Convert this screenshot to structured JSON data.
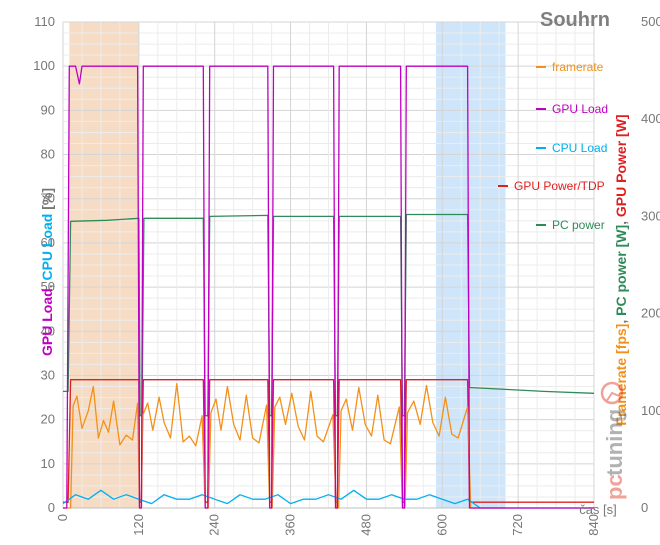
{
  "chart_data": {
    "type": "line",
    "title": "Souhrn",
    "xlabel": "čas [s]",
    "ylabel_left": "GPU Load, CPU Load [%]",
    "ylabel_left_parts": [
      {
        "text": "GPU Load",
        "color": "#c000c0"
      },
      {
        "text": ", ",
        "color": "#777777"
      },
      {
        "text": "CPU Load",
        "color": "#00b0f0"
      },
      {
        "text": " [%]",
        "color": "#777777"
      }
    ],
    "ylabel_right": "Framerate [fps], PC power [W], GPU Power [W]",
    "ylabel_right_parts": [
      {
        "text": "Framerate [fps]",
        "color": "#f39019"
      },
      {
        "text": ", ",
        "color": "#777777"
      },
      {
        "text": "PC power [W]",
        "color": "#2e8b57"
      },
      {
        "text": ", ",
        "color": "#777777"
      },
      {
        "text": "GPU Power [W]",
        "color": "#e02020"
      }
    ],
    "xlim": [
      0,
      840
    ],
    "ylim_left": [
      0,
      110
    ],
    "ylim_right": [
      0,
      500
    ],
    "x_ticks": [
      0,
      120,
      240,
      360,
      480,
      600,
      720,
      840
    ],
    "y_left_ticks": [
      0,
      10,
      20,
      30,
      40,
      50,
      60,
      70,
      80,
      90,
      100,
      110
    ],
    "y_right_ticks": [
      0,
      100,
      200,
      300,
      400,
      500
    ],
    "grid": true,
    "legend_position": "right",
    "highlight_regions": [
      {
        "x_start": 10,
        "x_end": 120,
        "color": "#f6dcc5"
      },
      {
        "x_start": 590,
        "x_end": 700,
        "color": "#cfe6fa"
      }
    ],
    "series": [
      {
        "name": "framerate",
        "color": "#f39019",
        "axis": "right",
        "points": [
          [
            0,
            0
          ],
          [
            5,
            0
          ],
          [
            12,
            0
          ],
          [
            16,
            105
          ],
          [
            22,
            115
          ],
          [
            30,
            82
          ],
          [
            40,
            100
          ],
          [
            48,
            125
          ],
          [
            56,
            72
          ],
          [
            64,
            90
          ],
          [
            72,
            78
          ],
          [
            80,
            110
          ],
          [
            90,
            65
          ],
          [
            100,
            75
          ],
          [
            110,
            70
          ],
          [
            118,
            108
          ],
          [
            121,
            0
          ],
          [
            124,
            0
          ],
          [
            126,
            95
          ],
          [
            134,
            108
          ],
          [
            142,
            80
          ],
          [
            152,
            114
          ],
          [
            160,
            88
          ],
          [
            170,
            72
          ],
          [
            180,
            128
          ],
          [
            190,
            68
          ],
          [
            200,
            74
          ],
          [
            210,
            64
          ],
          [
            220,
            95
          ],
          [
            225,
            0
          ],
          [
            230,
            0
          ],
          [
            234,
            98
          ],
          [
            242,
            112
          ],
          [
            250,
            80
          ],
          [
            260,
            125
          ],
          [
            270,
            86
          ],
          [
            280,
            70
          ],
          [
            290,
            116
          ],
          [
            300,
            72
          ],
          [
            310,
            67
          ],
          [
            322,
            106
          ],
          [
            327,
            0
          ],
          [
            331,
            0
          ],
          [
            335,
            104
          ],
          [
            343,
            114
          ],
          [
            352,
            86
          ],
          [
            362,
            118
          ],
          [
            372,
            84
          ],
          [
            382,
            70
          ],
          [
            392,
            120
          ],
          [
            402,
            74
          ],
          [
            412,
            68
          ],
          [
            427,
            96
          ],
          [
            432,
            0
          ],
          [
            436,
            0
          ],
          [
            440,
            100
          ],
          [
            448,
            112
          ],
          [
            458,
            80
          ],
          [
            468,
            124
          ],
          [
            478,
            86
          ],
          [
            488,
            74
          ],
          [
            498,
            116
          ],
          [
            508,
            70
          ],
          [
            518,
            66
          ],
          [
            532,
            104
          ],
          [
            537,
            0
          ],
          [
            541,
            0
          ],
          [
            545,
            98
          ],
          [
            555,
            110
          ],
          [
            565,
            86
          ],
          [
            575,
            126
          ],
          [
            585,
            88
          ],
          [
            595,
            74
          ],
          [
            605,
            114
          ],
          [
            615,
            76
          ],
          [
            625,
            72
          ],
          [
            640,
            104
          ],
          [
            645,
            0
          ],
          [
            700,
            0
          ]
        ]
      },
      {
        "name": "GPU Load",
        "color": "#c000c0",
        "axis": "left",
        "points": [
          [
            0,
            0
          ],
          [
            6,
            0
          ],
          [
            10,
            100
          ],
          [
            20,
            100
          ],
          [
            26,
            96
          ],
          [
            30,
            100
          ],
          [
            118,
            100
          ],
          [
            121,
            0
          ],
          [
            124,
            0
          ],
          [
            127,
            100
          ],
          [
            222,
            100
          ],
          [
            225,
            0
          ],
          [
            229,
            0
          ],
          [
            232,
            100
          ],
          [
            324,
            100
          ],
          [
            327,
            0
          ],
          [
            330,
            0
          ],
          [
            333,
            100
          ],
          [
            428,
            100
          ],
          [
            431,
            0
          ],
          [
            434,
            0
          ],
          [
            437,
            100
          ],
          [
            534,
            100
          ],
          [
            537,
            0
          ],
          [
            540,
            0
          ],
          [
            543,
            100
          ],
          [
            640,
            100
          ],
          [
            643,
            0
          ],
          [
            840,
            0
          ]
        ]
      },
      {
        "name": "CPU Load",
        "color": "#00b0f0",
        "axis": "left",
        "points": [
          [
            0,
            1
          ],
          [
            10,
            2
          ],
          [
            20,
            3
          ],
          [
            40,
            2
          ],
          [
            60,
            4
          ],
          [
            80,
            2
          ],
          [
            100,
            3
          ],
          [
            120,
            2
          ],
          [
            140,
            1
          ],
          [
            160,
            3
          ],
          [
            180,
            2
          ],
          [
            200,
            2
          ],
          [
            220,
            3
          ],
          [
            240,
            2
          ],
          [
            260,
            1
          ],
          [
            280,
            3
          ],
          [
            300,
            2
          ],
          [
            320,
            2
          ],
          [
            340,
            3
          ],
          [
            360,
            1
          ],
          [
            380,
            2
          ],
          [
            400,
            2
          ],
          [
            420,
            3
          ],
          [
            440,
            2
          ],
          [
            460,
            4
          ],
          [
            480,
            2
          ],
          [
            500,
            2
          ],
          [
            520,
            3
          ],
          [
            540,
            2
          ],
          [
            560,
            2
          ],
          [
            580,
            3
          ],
          [
            600,
            2
          ],
          [
            620,
            1
          ],
          [
            640,
            2
          ],
          [
            660,
            0
          ],
          [
            700,
            0
          ],
          [
            840,
            0
          ]
        ]
      },
      {
        "name": "GPU Power/TDP",
        "color": "#e02020",
        "axis": "right",
        "points": [
          [
            0,
            6
          ],
          [
            8,
            6
          ],
          [
            12,
            132
          ],
          [
            120,
            132
          ],
          [
            121,
            6
          ],
          [
            124,
            6
          ],
          [
            127,
            132
          ],
          [
            222,
            132
          ],
          [
            225,
            6
          ],
          [
            229,
            6
          ],
          [
            232,
            132
          ],
          [
            324,
            132
          ],
          [
            327,
            6
          ],
          [
            330,
            6
          ],
          [
            333,
            132
          ],
          [
            428,
            132
          ],
          [
            431,
            6
          ],
          [
            434,
            6
          ],
          [
            437,
            132
          ],
          [
            534,
            132
          ],
          [
            537,
            6
          ],
          [
            540,
            6
          ],
          [
            543,
            132
          ],
          [
            640,
            132
          ],
          [
            643,
            6
          ],
          [
            720,
            6
          ],
          [
            840,
            6
          ]
        ]
      },
      {
        "name": "PC power",
        "color": "#2e8b57",
        "axis": "right",
        "points": [
          [
            0,
            120
          ],
          [
            8,
            120
          ],
          [
            12,
            295
          ],
          [
            70,
            296
          ],
          [
            120,
            298
          ],
          [
            122,
            95
          ],
          [
            125,
            95
          ],
          [
            128,
            298
          ],
          [
            222,
            298
          ],
          [
            225,
            95
          ],
          [
            229,
            95
          ],
          [
            232,
            300
          ],
          [
            324,
            301
          ],
          [
            327,
            95
          ],
          [
            330,
            95
          ],
          [
            333,
            300
          ],
          [
            428,
            300
          ],
          [
            431,
            95
          ],
          [
            434,
            95
          ],
          [
            437,
            300
          ],
          [
            534,
            300
          ],
          [
            537,
            95
          ],
          [
            540,
            95
          ],
          [
            543,
            302
          ],
          [
            640,
            302
          ],
          [
            643,
            124
          ],
          [
            700,
            122
          ],
          [
            760,
            120
          ],
          [
            840,
            118
          ]
        ]
      }
    ]
  }
}
